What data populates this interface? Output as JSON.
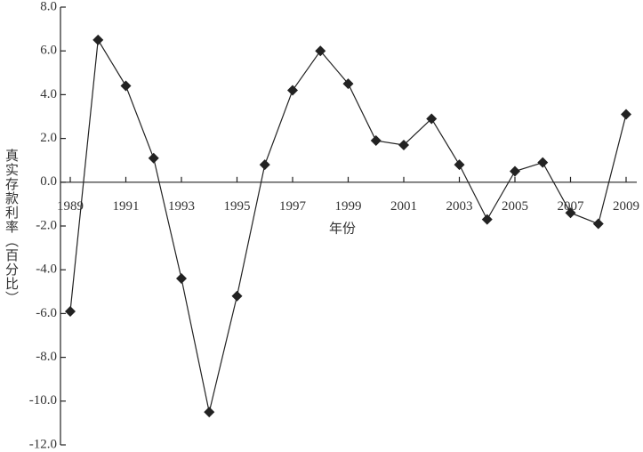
{
  "chart_data": {
    "type": "line",
    "x_label": "年份",
    "y_label": "真实存款利率（百分比）",
    "x": [
      1989,
      1990,
      1991,
      1992,
      1993,
      1994,
      1995,
      1996,
      1997,
      1998,
      1999,
      2000,
      2001,
      2002,
      2003,
      2004,
      2005,
      2006,
      2007,
      2008,
      2009
    ],
    "series": [
      {
        "color": "#222222",
        "values": [
          -5.9,
          6.5,
          4.4,
          1.1,
          -4.4,
          -10.5,
          -5.2,
          0.8,
          4.2,
          6.0,
          4.5,
          1.9,
          1.7,
          2.9,
          0.8,
          -1.7,
          0.5,
          0.9,
          -1.4,
          -1.9,
          3.1
        ]
      }
    ],
    "xlim": [
      1989,
      2009
    ],
    "xticks": [
      1989,
      1991,
      1993,
      1995,
      1997,
      1999,
      2001,
      2003,
      2005,
      2007,
      2009
    ],
    "ylim": [
      -12,
      8
    ],
    "yticks": [
      {
        "value": 8,
        "label": "8.0"
      },
      {
        "value": 6,
        "label": "6.0"
      },
      {
        "value": 4,
        "label": "4.0"
      },
      {
        "value": 2,
        "label": "2.0"
      },
      {
        "value": 0,
        "label": "0.0"
      },
      {
        "value": -2,
        "label": "-2.0"
      },
      {
        "value": -4,
        "label": "-4.0"
      },
      {
        "value": -6,
        "label": "-6.0"
      },
      {
        "value": -8,
        "label": "-8.0"
      },
      {
        "value": -10,
        "label": "-10.0"
      },
      {
        "value": -12,
        "label": "-12.0"
      }
    ],
    "grid": false
  }
}
